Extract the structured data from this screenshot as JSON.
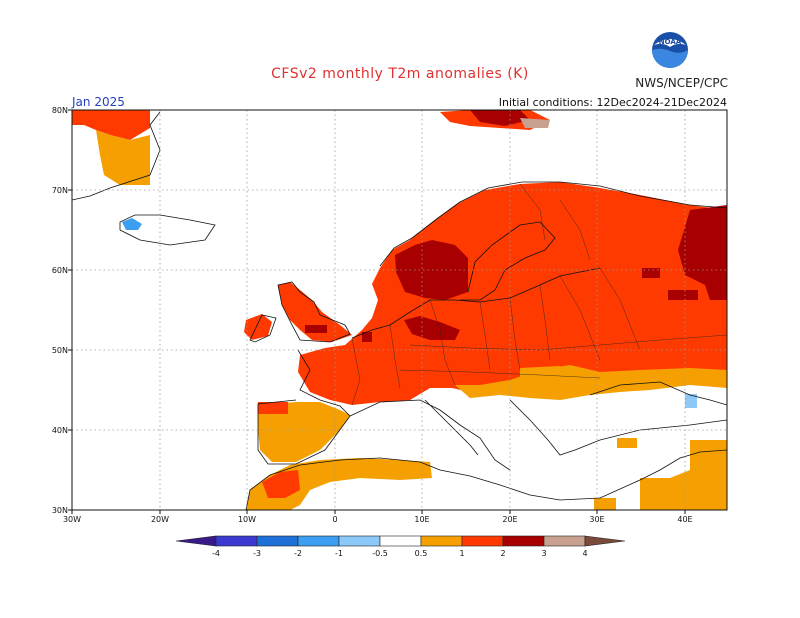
{
  "title": "CFSv2 monthly T2m anomalies (K)",
  "organization": "NWS/NCEP/CPC",
  "logo_text": "NOAA",
  "forecast_month": "Jan 2025",
  "initial_conditions": "Initial conditions: 12Dec2024-21Dec2024",
  "latitude_labels": [
    "80N",
    "70N",
    "60N",
    "50N",
    "40N",
    "30N"
  ],
  "longitude_labels": [
    "30W",
    "20W",
    "10W",
    "0",
    "10E",
    "20E",
    "30E",
    "40E"
  ],
  "colorbar": {
    "ticks": [
      "-4",
      "-3",
      "-2",
      "-1",
      "-0.5",
      "0.5",
      "1",
      "2",
      "3",
      "4"
    ],
    "colors": {
      "lt_-4": "#3a1a8a",
      "-4_-3": "#3a3ad0",
      "-3_-2": "#1e6fd8",
      "-2_-1": "#3c9ef0",
      "-1_-0.5": "#8cc8f8",
      "neutral": "#ffffff",
      "0.5_1": "#f5a000",
      "1_2": "#ff3a00",
      "2_3": "#a80000",
      "3_4": "#c8a090",
      "gt_4": "#7a4a3a"
    }
  }
}
